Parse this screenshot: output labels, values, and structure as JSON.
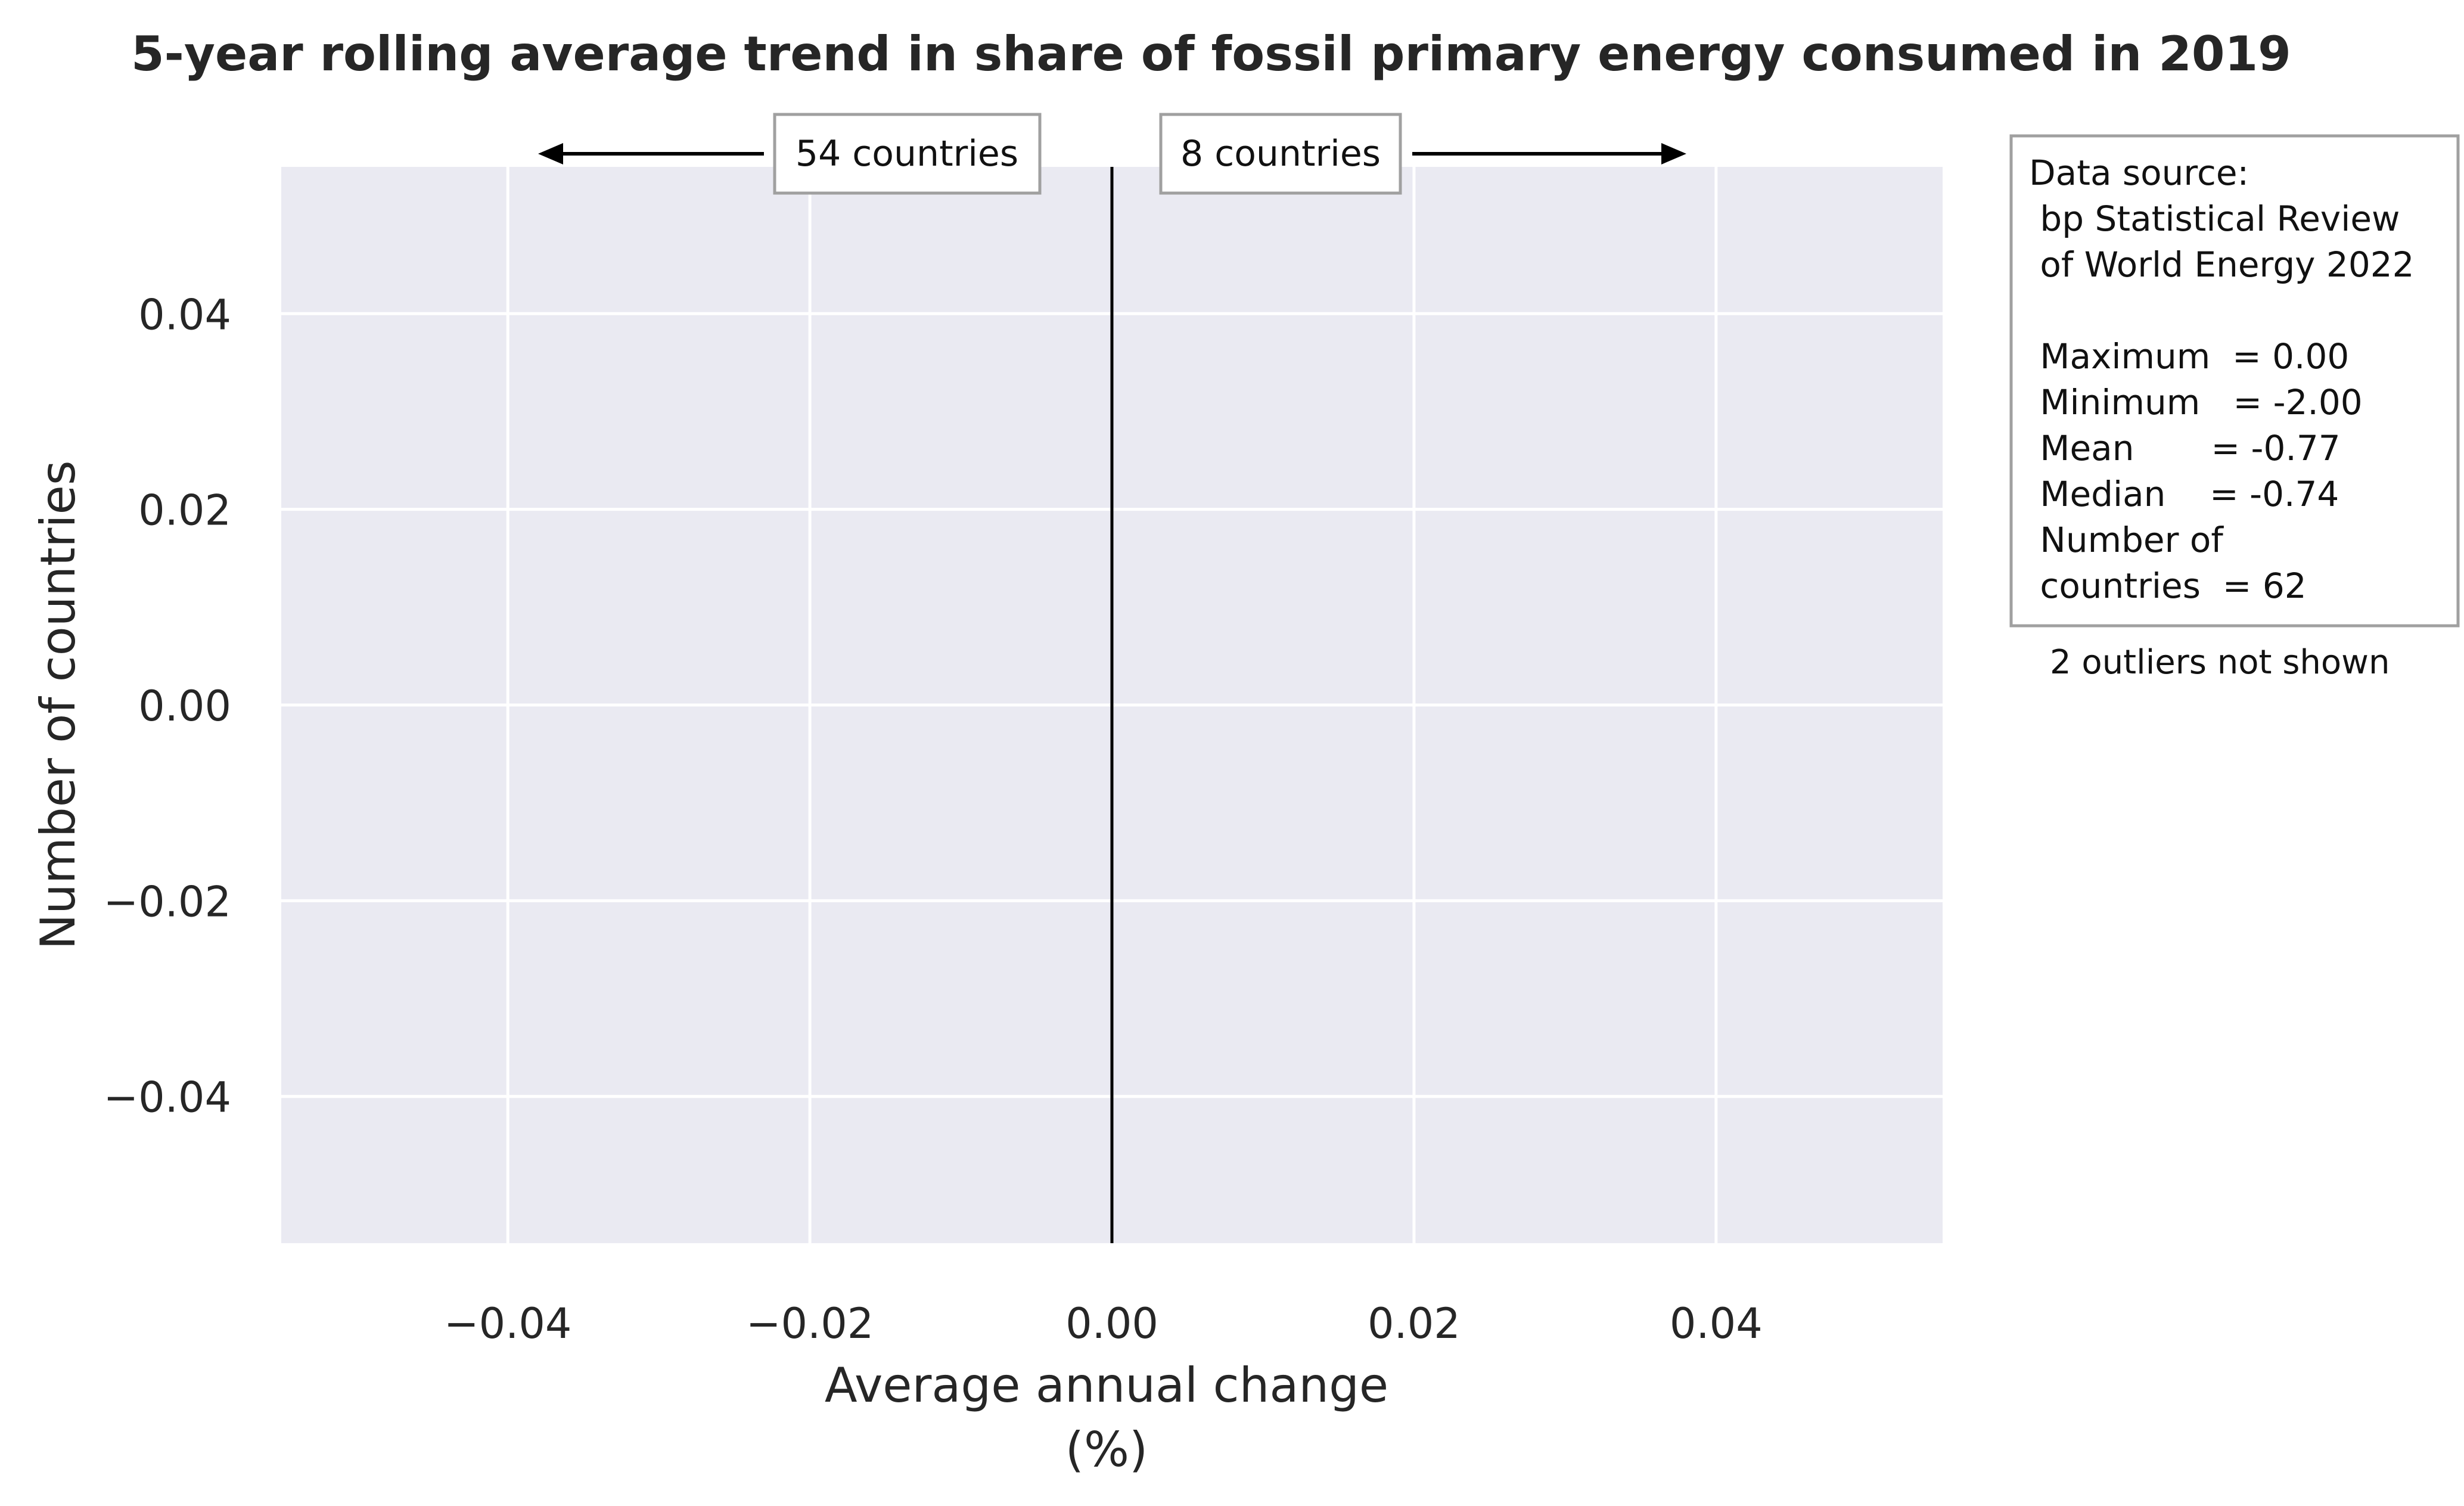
{
  "chart_data": {
    "type": "histogram",
    "title": "5-year rolling average trend in share of fossil primary energy consumed in 2019",
    "xlabel": [
      "Average annual change",
      "(%)"
    ],
    "ylabel": "Number of countries",
    "xlim": [
      -0.055,
      0.055
    ],
    "ylim": [
      -0.055,
      0.055
    ],
    "xticks": [
      -0.04,
      -0.02,
      0.0,
      0.02,
      0.04
    ],
    "yticks": [
      -0.04,
      -0.02,
      0.0,
      0.02,
      0.04
    ],
    "xtick_labels": [
      "−0.04",
      "−0.02",
      "0.00",
      "0.02",
      "0.04"
    ],
    "ytick_labels": [
      "−0.04",
      "−0.02",
      "0.00",
      "0.02",
      "0.04"
    ],
    "grid": true,
    "reference_line_x": 0.0,
    "background_color": "#EAEAF2",
    "grid_color": "#FFFFFF",
    "series": [],
    "annotations": {
      "left_count_label": "54 countries",
      "right_count_label": "8 countries",
      "stats_box_lines": [
        "Data source:",
        " bp Statistical Review",
        " of World Energy 2022",
        "",
        " Maximum  = 0.00",
        " Minimum   = -2.00",
        " Mean       = -0.77",
        " Median    = -0.74",
        " Number of",
        " countries  = 62"
      ],
      "outliers_note": "2 outliers not shown"
    }
  }
}
